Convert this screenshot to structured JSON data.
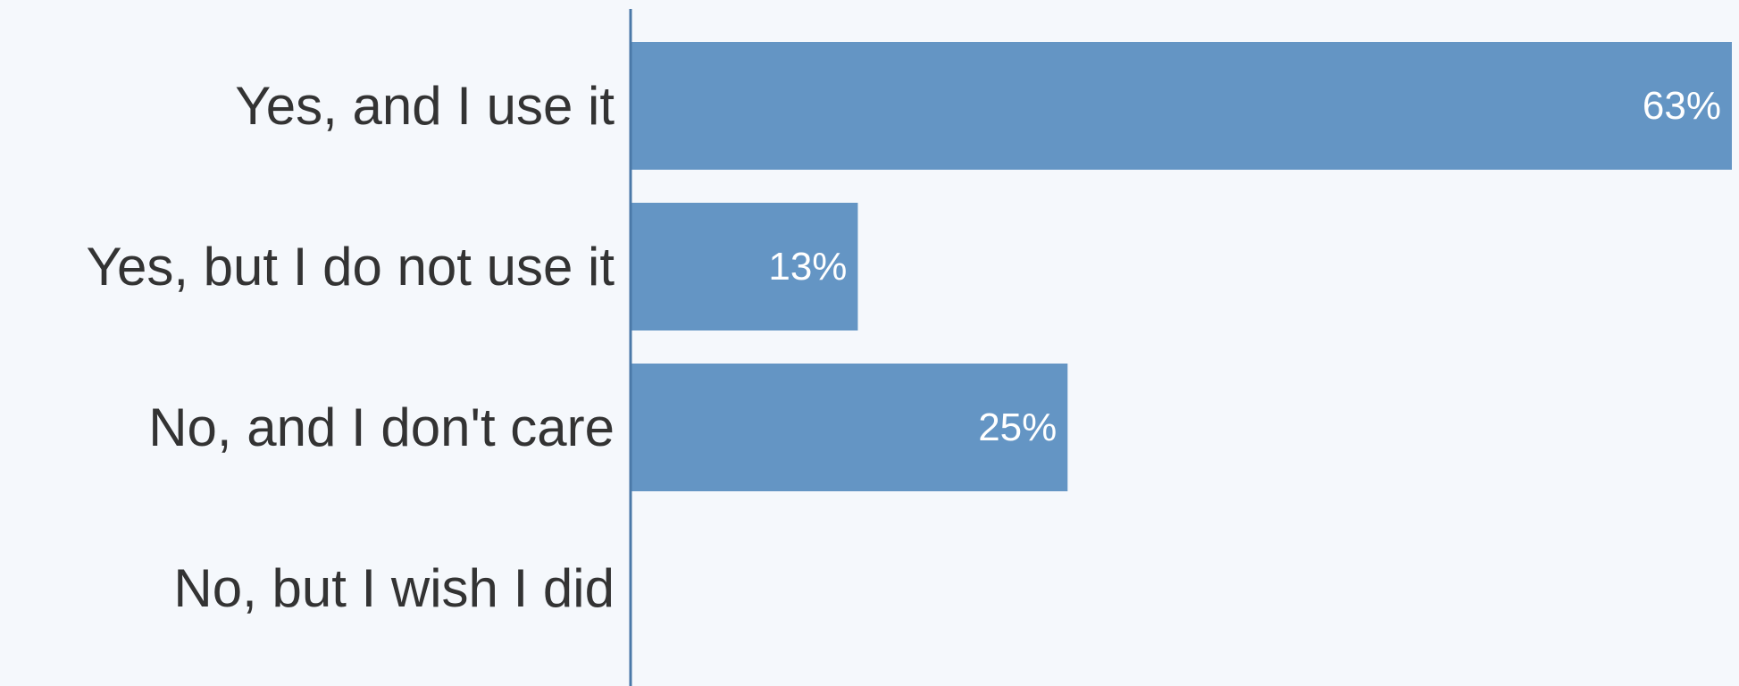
{
  "chart_data": {
    "type": "bar",
    "orientation": "horizontal",
    "categories": [
      "Yes, and I use it",
      "Yes, but I do not use it",
      "No, and I don't care",
      "No, but I wish I did"
    ],
    "values": [
      63,
      13,
      25,
      0
    ],
    "value_labels": [
      "63%",
      "13%",
      "25%",
      ""
    ],
    "xlim": [
      0,
      63
    ],
    "bar_color": "#6495c4",
    "axis_color": "#4a79a8",
    "label_color": "#333333",
    "value_label_color": "#ffffff",
    "background": "#f5f8fc",
    "grid": false,
    "legend": "none",
    "title": "",
    "xlabel": "",
    "ylabel": ""
  }
}
